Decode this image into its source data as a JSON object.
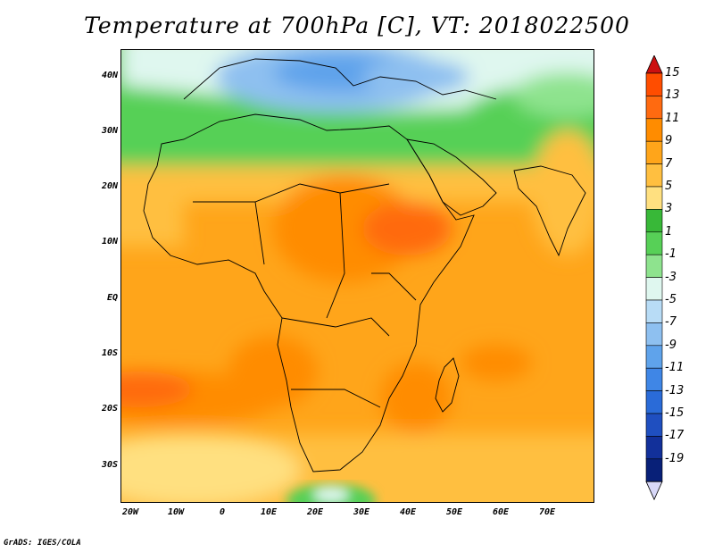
{
  "title": "Temperature at 700hPa [C], VT: 2018022500",
  "footer": "GrADS: IGES/COLA",
  "axes": {
    "lat_ticks": [
      "40N",
      "30N",
      "20N",
      "10N",
      "EQ",
      "10S",
      "20S",
      "30S"
    ],
    "lon_ticks": [
      "20W",
      "10W",
      "0",
      "10E",
      "20E",
      "30E",
      "40E",
      "50E",
      "60E",
      "70E"
    ]
  },
  "colorbar": {
    "labels": [
      "15",
      "13",
      "11",
      "9",
      "7",
      "5",
      "3",
      "1",
      "-1",
      "-3",
      "-5",
      "-7",
      "-9",
      "-11",
      "-13",
      "-15",
      "-17",
      "-19"
    ],
    "colors": [
      "#ff4d00",
      "#ff6a10",
      "#ff8c00",
      "#ffa51a",
      "#ffbf40",
      "#ffe080",
      "#38b838",
      "#57d057",
      "#8ee38e",
      "#dff7ef",
      "#b8dcf6",
      "#8ec0f0",
      "#5fa3eb",
      "#3f86e6",
      "#2a6bd8",
      "#1f4fc0",
      "#12309a",
      "#082078"
    ],
    "top_arrow": "#cc1010",
    "bottom_arrow": "#d8d8f8"
  }
}
